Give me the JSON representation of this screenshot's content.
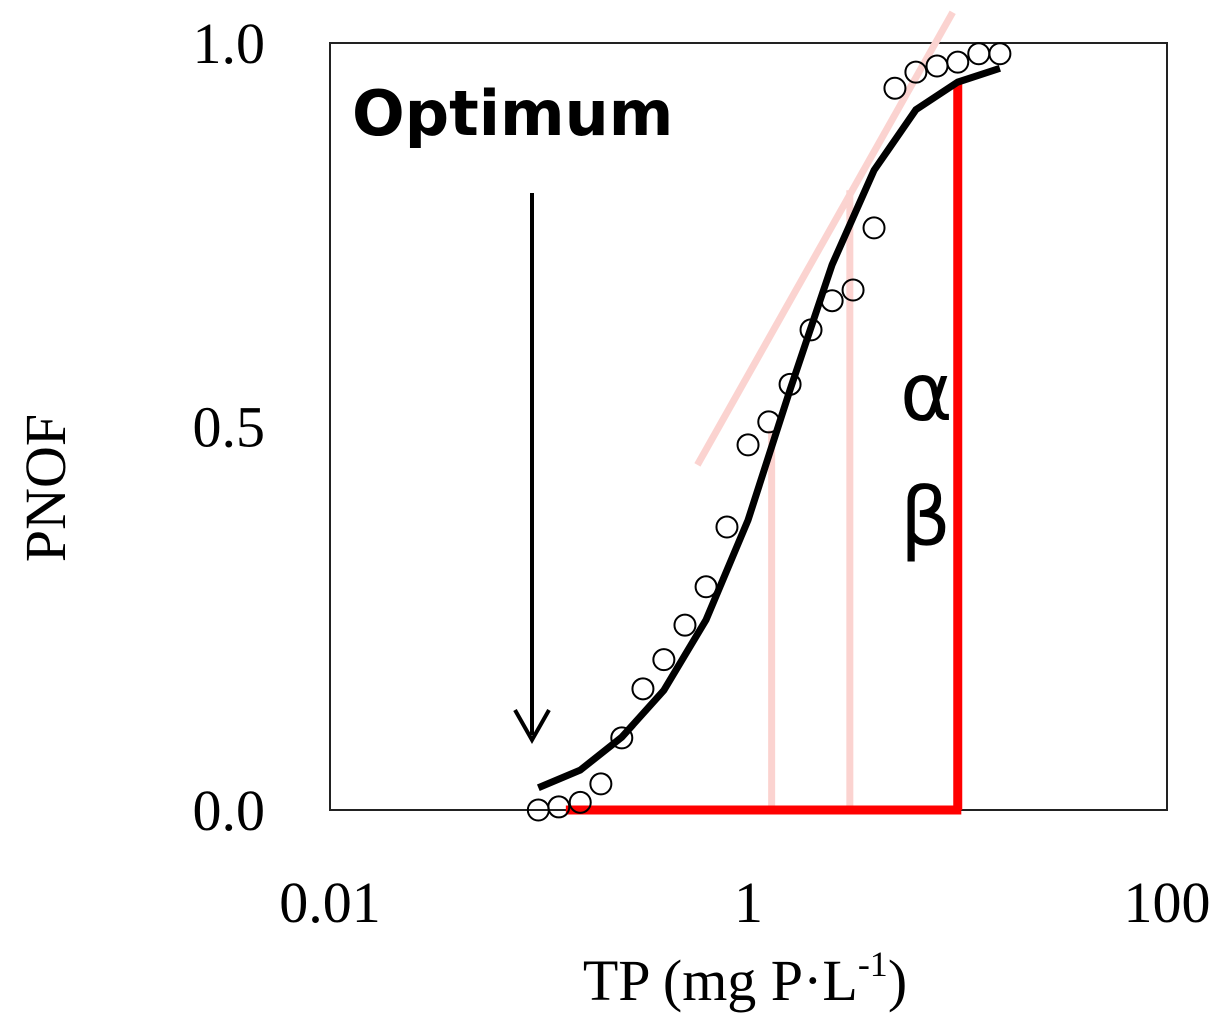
{
  "chart_data": {
    "type": "scatter",
    "xlabel": [
      "TP (mg P·L",
      "-1",
      ")"
    ],
    "ylabel": "PNOF",
    "xscale": "log",
    "xlim": [
      0.01,
      100
    ],
    "xticks": [
      0.01,
      1,
      100
    ],
    "ylim": [
      0,
      1
    ],
    "yticks": [
      {
        "value": 0,
        "label": "0.0"
      },
      {
        "value": 0.5,
        "label": "0.5"
      },
      {
        "value": 1,
        "label": "1.0"
      }
    ],
    "annotations": [
      "Optimum",
      "α",
      "β"
    ],
    "series": [
      {
        "kind": "points",
        "color": "#000000",
        "x": [
          0.099,
          0.124,
          0.157,
          0.197,
          0.248,
          0.313,
          0.394,
          0.497,
          0.627,
          0.789,
          0.995,
          1.25,
          1.58,
          1.99,
          2.51,
          3.16,
          3.98,
          5.01,
          6.31,
          7.96,
          10.0,
          12.6,
          15.9
        ],
        "values": [
          0,
          0.004,
          0.01,
          0.034,
          0.094,
          0.158,
          0.196,
          0.241,
          0.291,
          0.369,
          0.476,
          0.506,
          0.555,
          0.626,
          0.664,
          0.678,
          0.759,
          0.941,
          0.962,
          0.97,
          0.975,
          0.986,
          0.986
        ]
      },
      {
        "kind": "line",
        "color": "#000000",
        "width": 7,
        "x": [
          0.099,
          0.157,
          0.248,
          0.394,
          0.627,
          0.995,
          1.58,
          2.51,
          3.98,
          6.31,
          10.0,
          15.9
        ],
        "values": [
          0.029,
          0.052,
          0.095,
          0.156,
          0.248,
          0.378,
          0.548,
          0.711,
          0.834,
          0.913,
          0.949,
          0.967
        ]
      },
      {
        "kind": "line",
        "color": "#fbd3d0",
        "width": 7,
        "x": [
          0.57,
          9.46
        ],
        "values": [
          0.45,
          1.04
        ]
      },
      {
        "kind": "line",
        "color": "#fbd3d0",
        "width": 7,
        "x": [
          1.29,
          1.29
        ],
        "values": [
          0,
          0.495
        ]
      },
      {
        "kind": "line",
        "color": "#fbd3d0",
        "width": 7,
        "x": [
          3.05,
          3.05
        ],
        "values": [
          0,
          0.808
        ]
      },
      {
        "kind": "line",
        "color": "#ff0000",
        "width": 9,
        "x": [
          0.134,
          10.4
        ],
        "values": [
          0,
          0
        ]
      },
      {
        "kind": "line",
        "color": "#ff0000",
        "width": 9,
        "x": [
          10,
          10
        ],
        "values": [
          0,
          0.949
        ]
      }
    ]
  }
}
